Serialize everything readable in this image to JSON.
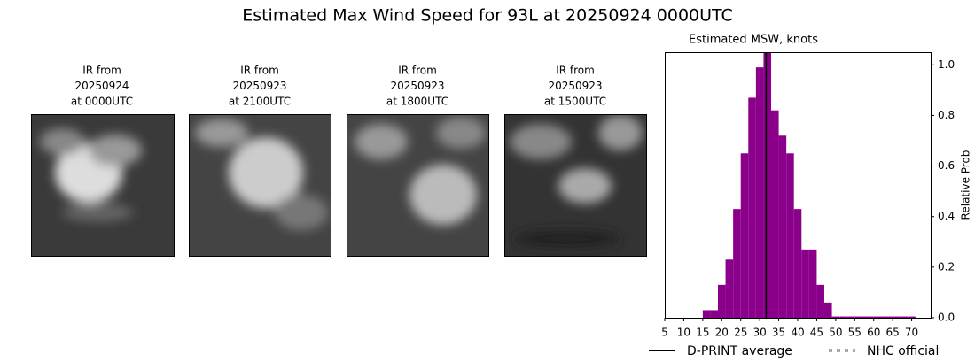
{
  "title": "Estimated Max Wind Speed for 93L at 20250924 0000UTC",
  "panels": [
    {
      "lines": [
        "IR from",
        "20250924",
        "at 0000UTC"
      ]
    },
    {
      "lines": [
        "IR from",
        "20250923",
        "at 2100UTC"
      ]
    },
    {
      "lines": [
        "IR from",
        "20250923",
        "at 1800UTC"
      ]
    },
    {
      "lines": [
        "IR from",
        "20250923",
        "at 1500UTC"
      ]
    }
  ],
  "chart_data": {
    "type": "histogram",
    "title": "Estimated MSW, knots",
    "y_label": "Relative Prob",
    "bins": [
      15,
      17,
      19,
      21,
      23,
      25,
      27,
      29,
      31,
      33,
      35,
      37,
      39,
      41,
      43,
      45,
      47,
      49,
      51,
      53,
      55,
      57,
      59,
      61,
      63,
      65,
      67,
      69,
      71
    ],
    "values": [
      0.03,
      0.03,
      0.13,
      0.23,
      0.43,
      0.65,
      0.87,
      0.99,
      1.05,
      0.82,
      0.72,
      0.65,
      0.43,
      0.27,
      0.27,
      0.13,
      0.06,
      0.005,
      0.005,
      0.005,
      0.005,
      0.005,
      0.005,
      0.005,
      0.005,
      0.005,
      0.005,
      0.005
    ],
    "color": "#8b008b",
    "xlim": [
      5,
      75
    ],
    "xticks": [
      5,
      10,
      15,
      20,
      25,
      30,
      35,
      40,
      45,
      50,
      55,
      60,
      65,
      70
    ],
    "ylim": [
      0,
      1.05
    ],
    "yticks": [
      {
        "value": 0,
        "label": "0.0"
      },
      {
        "value": 0.2,
        "label": "0.2"
      },
      {
        "value": 0.4,
        "label": "0.4"
      },
      {
        "value": 0.6,
        "label": "0.6"
      },
      {
        "value": 0.8,
        "label": "0.8"
      },
      {
        "value": 1.0,
        "label": "1.0"
      }
    ],
    "mean_line": {
      "name": "D-PRINT average",
      "value": 31.7,
      "color": "#000000"
    },
    "legend": [
      {
        "name": "D-PRINT average",
        "color": "#000000",
        "style": "solid"
      },
      {
        "name": "NHC official",
        "color": "#aaaaaa",
        "style": "dotted"
      }
    ]
  }
}
